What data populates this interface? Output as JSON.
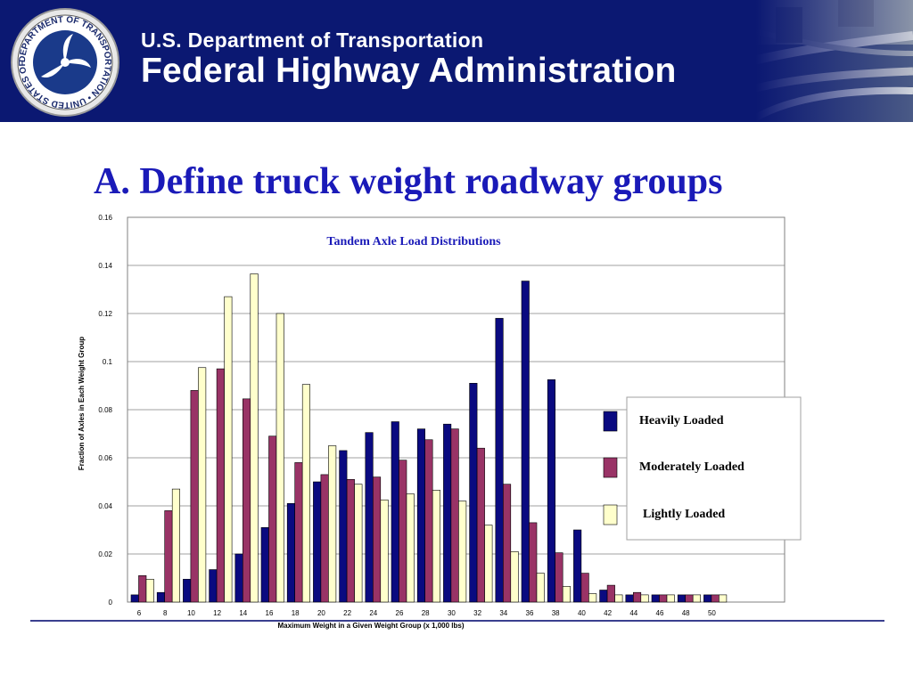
{
  "header": {
    "department": "U.S. Department of Transportation",
    "agency": "Federal Highway Administration",
    "seal_text": "DEPARTMENT OF TRANSPORTATION • UNITED STATES OF AMERICA"
  },
  "slide": {
    "title": "A.  Define truck weight roadway groups"
  },
  "colors": {
    "banner": "#0b1872",
    "title": "#1a1ab8",
    "heavy": "#0a0a80",
    "moderate": "#993366",
    "light": "#ffffcc"
  },
  "chart_data": {
    "type": "bar",
    "title": "Tandem Axle Load Distributions",
    "xlabel": "Maximum Weight in  a Given Weight Group (x 1,000 lbs)",
    "ylabel": "Fraction of Axles in Each Weight Group",
    "ylim": [
      0,
      0.16
    ],
    "yticks": [
      "0",
      "0.02",
      "0.04",
      "0.06",
      "0.08",
      "0.1",
      "0.12",
      "0.14",
      "0.16"
    ],
    "grid": true,
    "legend_position": "right",
    "categories": [
      "6",
      "8",
      "10",
      "12",
      "14",
      "16",
      "18",
      "20",
      "22",
      "24",
      "26",
      "28",
      "30",
      "32",
      "34",
      "36",
      "38",
      "40",
      "42",
      "44",
      "46",
      "48",
      "50"
    ],
    "series": [
      {
        "name": "Heavily Loaded",
        "color": "#0a0a80",
        "values": [
          0.003,
          0.004,
          0.0095,
          0.0135,
          0.02,
          0.031,
          0.041,
          0.05,
          0.063,
          0.0705,
          0.075,
          0.072,
          0.074,
          0.091,
          0.118,
          0.1335,
          0.0925,
          0.03,
          0.005,
          0.003,
          0.003,
          0.003,
          0.003
        ]
      },
      {
        "name": "Moderately Loaded",
        "color": "#993366",
        "values": [
          0.011,
          0.038,
          0.088,
          0.097,
          0.0845,
          0.069,
          0.058,
          0.053,
          0.051,
          0.052,
          0.059,
          0.0675,
          0.072,
          0.064,
          0.049,
          0.033,
          0.0205,
          0.012,
          0.007,
          0.004,
          0.003,
          0.003,
          0.003
        ]
      },
      {
        "name": "Lightly Loaded",
        "color": "#ffffcc",
        "values": [
          0.0095,
          0.047,
          0.0975,
          0.127,
          0.1365,
          0.12,
          0.0905,
          0.065,
          0.049,
          0.0425,
          0.045,
          0.0465,
          0.042,
          0.032,
          0.021,
          0.012,
          0.0065,
          0.0035,
          0.003,
          0.003,
          0.003,
          0.003,
          0.003
        ]
      }
    ]
  }
}
